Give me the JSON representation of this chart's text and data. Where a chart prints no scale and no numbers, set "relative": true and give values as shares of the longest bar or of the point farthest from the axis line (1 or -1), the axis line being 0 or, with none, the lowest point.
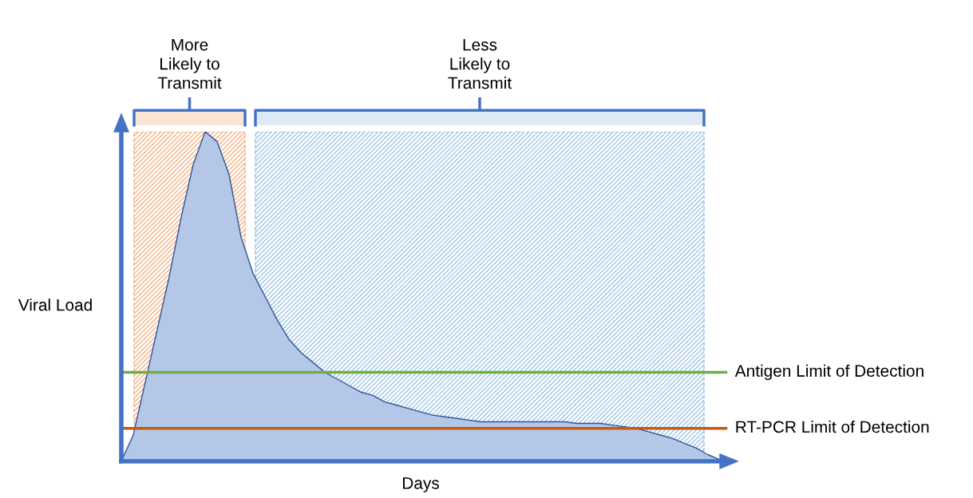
{
  "chart_data": {
    "type": "area",
    "relative": true,
    "xlabel": "Days",
    "ylabel": "Viral Load",
    "categories": [
      null,
      null,
      null,
      null,
      null,
      null,
      null,
      null,
      null,
      null,
      null,
      null,
      null,
      null,
      null,
      null,
      null,
      null,
      null,
      null,
      null,
      null,
      null,
      null,
      null,
      null,
      null,
      null,
      null,
      null,
      null,
      null,
      null,
      null,
      null,
      null,
      null,
      null,
      null,
      null,
      null,
      null,
      null,
      null,
      null,
      null,
      null,
      null,
      null,
      null,
      null
    ],
    "series": [
      {
        "color": "#b4c7e7",
        "values": [
          0,
          0.08,
          0.24,
          0.4,
          0.56,
          0.74,
          0.9,
          1.0,
          0.97,
          0.87,
          0.68,
          0.57,
          0.5,
          0.43,
          0.37,
          0.33,
          0.3,
          0.27,
          0.25,
          0.23,
          0.21,
          0.2,
          0.18,
          0.17,
          0.16,
          0.15,
          0.14,
          0.135,
          0.13,
          0.125,
          0.12,
          0.12,
          0.12,
          0.12,
          0.12,
          0.12,
          0.12,
          0.12,
          0.115,
          0.115,
          0.115,
          0.11,
          0.105,
          0.1,
          0.09,
          0.08,
          0.07,
          0.055,
          0.04,
          0.02,
          0.005
        ]
      }
    ],
    "annotations": [
      "More\nLikely to\nTransmit",
      "Less\nLikely to\nTransmit"
    ],
    "ref_lines": [
      {
        "axis": "y",
        "value": 0.27,
        "label": "Antigen Limit of Detection",
        "color": "#70ad47"
      },
      {
        "axis": "y",
        "value": 0.1,
        "label": "RT-PCR Limit of Detection",
        "color": "#c55a11"
      }
    ]
  }
}
